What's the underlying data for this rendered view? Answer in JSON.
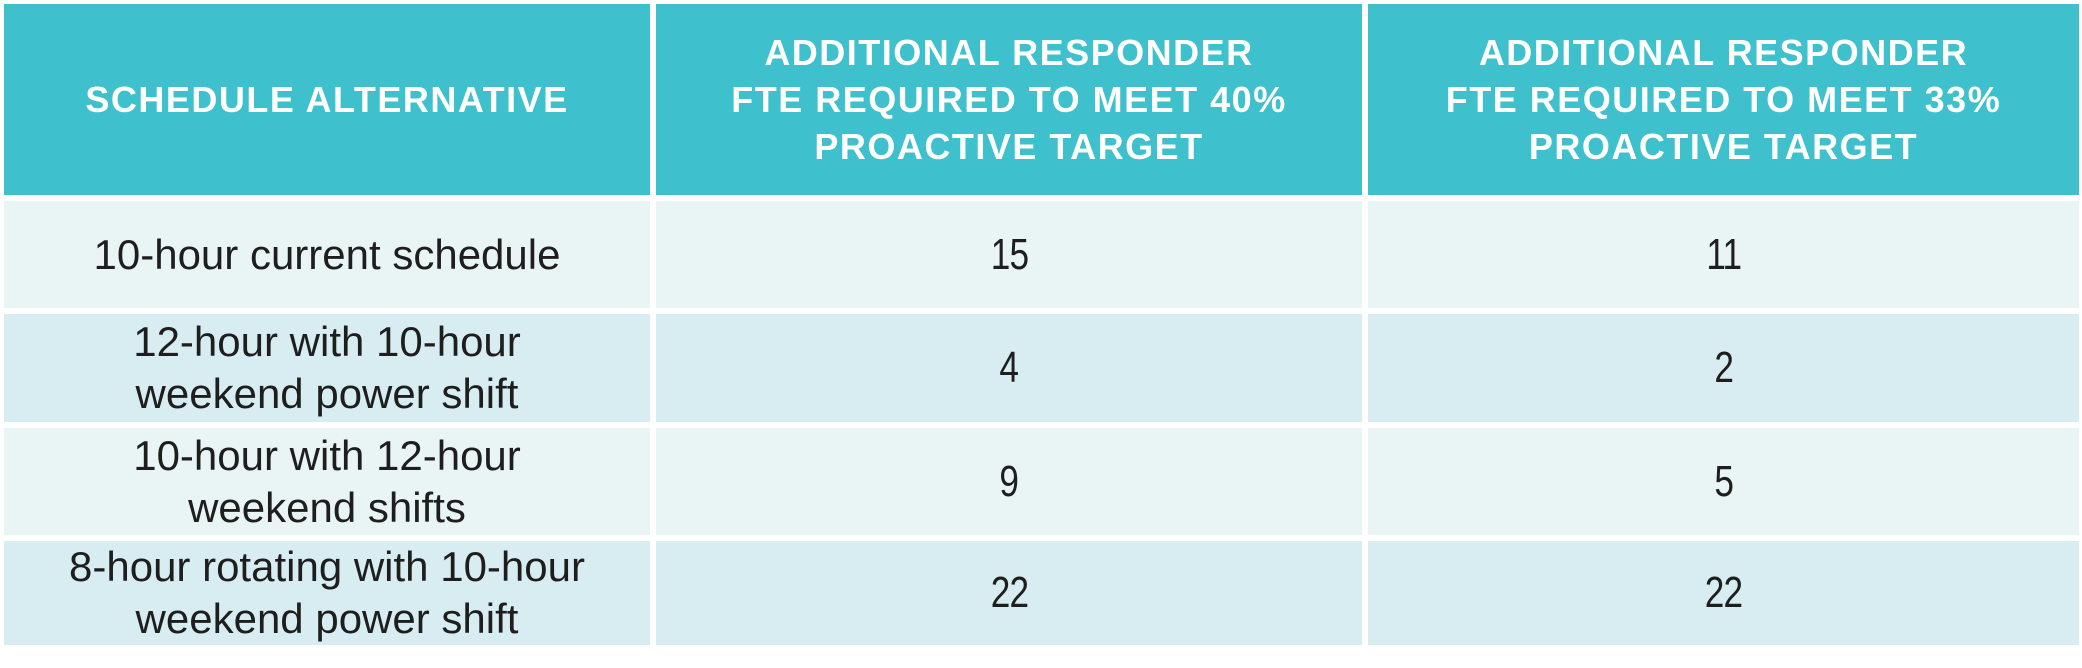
{
  "chart_data": {
    "type": "table",
    "columns": [
      "SCHEDULE ALTERNATIVE",
      "ADDITIONAL RESPONDER FTE REQUIRED TO MEET 40% PROACTIVE TARGET",
      "ADDITIONAL RESPONDER FTE REQUIRED TO MEET 33% PROACTIVE TARGET"
    ],
    "rows": [
      [
        "10-hour current schedule",
        15,
        11
      ],
      [
        "12-hour with 10-hour weekend power shift",
        4,
        2
      ],
      [
        "10-hour with 12-hour weekend shifts",
        9,
        5
      ],
      [
        "8-hour rotating with 10-hour weekend power shift",
        22,
        22
      ]
    ]
  },
  "table": {
    "header": {
      "col1_lines": [
        "SCHEDULE ALTERNATIVE"
      ],
      "col2_lines": [
        "ADDITIONAL RESPONDER",
        "FTE REQUIRED TO MEET 40%",
        "PROACTIVE TARGET"
      ],
      "col3_lines": [
        "ADDITIONAL RESPONDER",
        "FTE REQUIRED TO MEET 33%",
        "PROACTIVE TARGET"
      ]
    },
    "rows": [
      {
        "label_lines": [
          "10-hour current schedule"
        ],
        "fte40": "15",
        "fte33": "11"
      },
      {
        "label_lines": [
          "12-hour with 10-hour",
          "weekend power shift"
        ],
        "fte40": "4",
        "fte33": "2"
      },
      {
        "label_lines": [
          "10-hour with 12-hour",
          "weekend shifts"
        ],
        "fte40": "9",
        "fte33": "5"
      },
      {
        "label_lines": [
          "8-hour rotating with 10-hour",
          "weekend power shift"
        ],
        "fte40": "22",
        "fte33": "22"
      }
    ]
  },
  "colors": {
    "header_bg": "#3EC0CD",
    "header_text": "#FFFFFF",
    "row_bg_light": "#E9F4F5",
    "row_bg_dark": "#D8EDF2",
    "body_text": "#1E1E1E",
    "divider": "#FFFFFF"
  }
}
